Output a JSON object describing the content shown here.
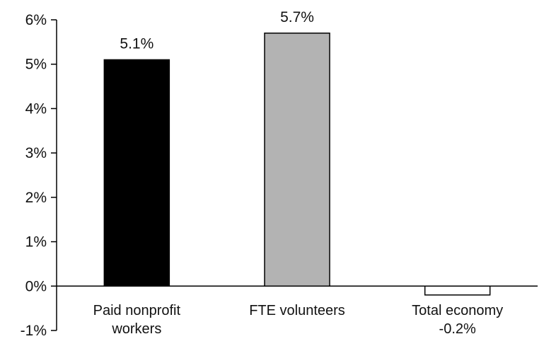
{
  "chart_data": {
    "type": "bar",
    "categories": [
      [
        "Paid nonprofit",
        "workers"
      ],
      [
        "FTE volunteers"
      ],
      [
        "Total economy",
        "-0.2%"
      ]
    ],
    "values": [
      5.1,
      5.7,
      -0.2
    ],
    "data_labels": [
      "5.1%",
      "5.7%",
      ""
    ],
    "bar_colors": [
      "#000000",
      "#b3b3b3",
      "#ffffff"
    ],
    "bar_stroke": "#000000",
    "ylim": [
      -1,
      6
    ],
    "yticks": [
      -1,
      0,
      1,
      2,
      3,
      4,
      5,
      6
    ],
    "ytick_labels": [
      "-1%",
      "0%",
      "1%",
      "2%",
      "3%",
      "4%",
      "5%",
      "6%"
    ],
    "grid": false,
    "legend": "none",
    "title": "",
    "xlabel": "",
    "ylabel": ""
  }
}
